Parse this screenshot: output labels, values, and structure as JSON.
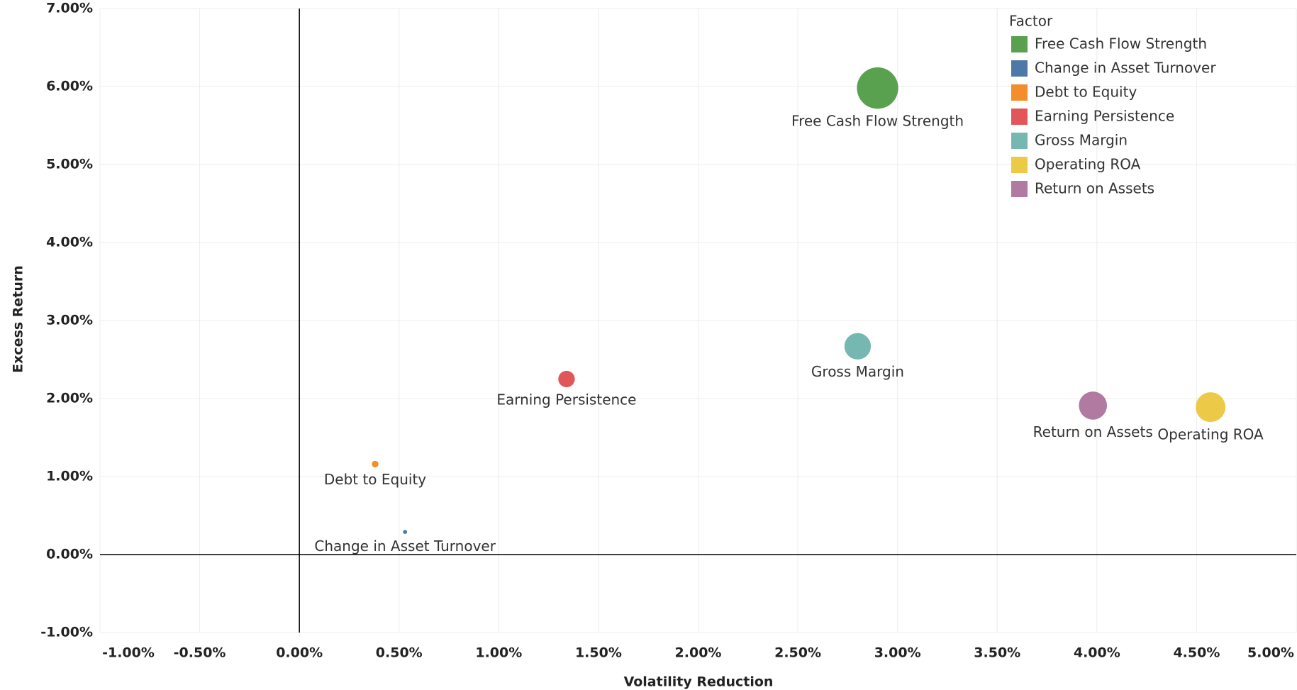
{
  "chart_data": {
    "type": "scatter",
    "x_label": "Volatility Reduction",
    "y_label": "Excess Return",
    "legend_title": "Factor",
    "legend": "top-right",
    "grid": true,
    "xlim": [
      -1,
      5
    ],
    "ylim": [
      -1,
      7
    ],
    "xticks": [
      {
        "value": -1,
        "label": "-1.00%"
      },
      {
        "value": -0.5,
        "label": "-0.50%"
      },
      {
        "value": 0,
        "label": "0.00%"
      },
      {
        "value": 0.5,
        "label": "0.50%"
      },
      {
        "value": 1,
        "label": "1.00%"
      },
      {
        "value": 1.5,
        "label": "1.50%"
      },
      {
        "value": 2,
        "label": "2.00%"
      },
      {
        "value": 2.5,
        "label": "2.50%"
      },
      {
        "value": 3,
        "label": "3.00%"
      },
      {
        "value": 3.5,
        "label": "3.50%"
      },
      {
        "value": 4,
        "label": "4.00%"
      },
      {
        "value": 4.5,
        "label": "4.50%"
      },
      {
        "value": 5,
        "label": "5.00%"
      }
    ],
    "yticks": [
      {
        "value": -1,
        "label": "-1.00%"
      },
      {
        "value": 0,
        "label": "0.00%"
      },
      {
        "value": 1,
        "label": "1.00%"
      },
      {
        "value": 2,
        "label": "2.00%"
      },
      {
        "value": 3,
        "label": "3.00%"
      },
      {
        "value": 4,
        "label": "4.00%"
      },
      {
        "value": 5,
        "label": "5.00%"
      },
      {
        "value": 6,
        "label": "6.00%"
      },
      {
        "value": 7,
        "label": "7.00%"
      }
    ],
    "series": [
      {
        "name": "Free Cash Flow Strength",
        "color": "#59a14f",
        "x": [
          2.9
        ],
        "values": [
          5.98
        ],
        "sizes": [
          625
        ]
      },
      {
        "name": "Change in Asset Turnover",
        "color": "#4e79a7",
        "x": [
          0.53
        ],
        "values": [
          0.29
        ],
        "sizes": [
          6
        ]
      },
      {
        "name": "Debt to Equity",
        "color": "#f28e2b",
        "x": [
          0.38
        ],
        "values": [
          1.16
        ],
        "sizes": [
          16
        ]
      },
      {
        "name": "Earning Persistence",
        "color": "#e15759",
        "x": [
          1.34
        ],
        "values": [
          2.25
        ],
        "sizes": [
          100
        ]
      },
      {
        "name": "Gross Margin",
        "color": "#76b7b2",
        "x": [
          2.8
        ],
        "values": [
          2.67
        ],
        "sizes": [
          256
        ]
      },
      {
        "name": "Operating ROA",
        "color": "#edc948",
        "x": [
          4.57
        ],
        "values": [
          1.89
        ],
        "sizes": [
          324
        ]
      },
      {
        "name": "Return on Assets",
        "color": "#b07aa1",
        "x": [
          3.98
        ],
        "values": [
          1.91
        ],
        "sizes": [
          289
        ]
      }
    ]
  }
}
